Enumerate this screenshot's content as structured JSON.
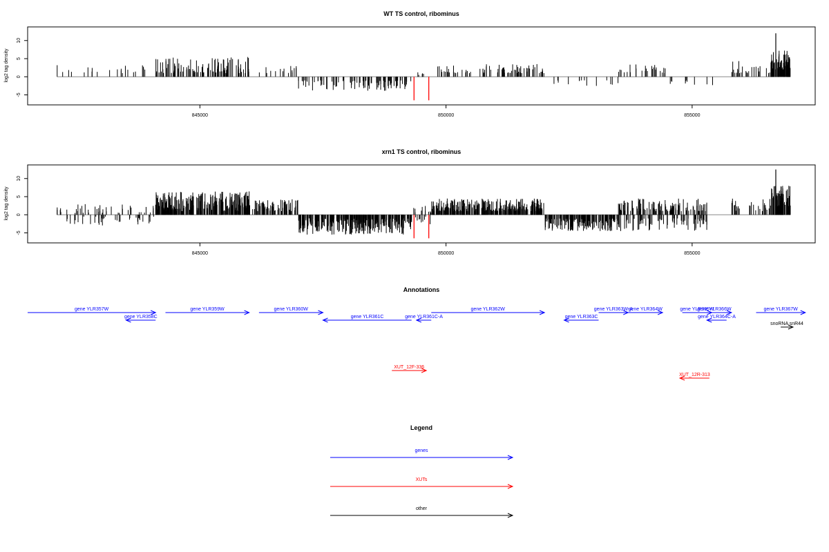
{
  "colors": {
    "genes": "#0000ff",
    "xuts": "#ff0000",
    "other": "#000000",
    "bars": "#000000",
    "highlight": "#ff0000",
    "frame": "#000000"
  },
  "chart_data": [
    {
      "type": "bar",
      "title": "WT TS control, ribominus",
      "ylabel": "log2 tag density",
      "xlim": [
        841500,
        857500
      ],
      "ylim": [
        -7,
        13
      ],
      "x_ticks": [
        845000,
        850000,
        855000
      ],
      "x_tick_labels": [
        "845000",
        "850000",
        "855000"
      ],
      "y_ticks": [
        -5,
        0,
        5,
        10
      ],
      "y_tick_labels": [
        "-5",
        "0",
        "5",
        "10"
      ],
      "baseline_range": [
        842100,
        857000
      ],
      "segments": [
        {
          "start": 842100,
          "end": 844000,
          "sign": 1,
          "min": 1,
          "max": 3.5,
          "density": 0.012
        },
        {
          "start": 844100,
          "end": 846000,
          "sign": 1,
          "min": 1,
          "max": 5.5,
          "density": 0.06
        },
        {
          "start": 846000,
          "end": 847000,
          "sign": 1,
          "min": 1,
          "max": 3,
          "density": 0.015
        },
        {
          "start": 847000,
          "end": 849300,
          "sign": -1,
          "min": 1,
          "max": 4,
          "density": 0.045
        },
        {
          "start": 849400,
          "end": 849700,
          "sign": 1,
          "min": 0.5,
          "max": 2,
          "density": 0.02
        },
        {
          "start": 849800,
          "end": 852000,
          "sign": 1,
          "min": 1,
          "max": 3.5,
          "density": 0.035
        },
        {
          "start": 852100,
          "end": 853500,
          "sign": -1,
          "min": 1,
          "max": 3,
          "density": 0.01
        },
        {
          "start": 853500,
          "end": 854500,
          "sign": 1,
          "min": 1,
          "max": 3.5,
          "density": 0.025
        },
        {
          "start": 854500,
          "end": 855500,
          "sign": -1,
          "min": 1,
          "max": 2.5,
          "density": 0.01
        },
        {
          "start": 855800,
          "end": 856600,
          "sign": 1,
          "min": 1,
          "max": 4.5,
          "density": 0.03
        },
        {
          "start": 856600,
          "end": 857000,
          "sign": 1,
          "min": 2,
          "max": 7.5,
          "density": 0.18
        }
      ],
      "peaks": [
        {
          "x": 856700,
          "y": 12
        }
      ],
      "highlights": [
        {
          "x": 849350,
          "y": -6.5
        },
        {
          "x": 849650,
          "y": -6.5
        }
      ]
    },
    {
      "type": "bar",
      "title": "xrn1 TS control, ribominus",
      "ylabel": "log2 tag density",
      "xlim": [
        841500,
        857500
      ],
      "ylim": [
        -7,
        13
      ],
      "x_ticks": [
        845000,
        850000,
        855000
      ],
      "x_tick_labels": [
        "845000",
        "850000",
        "855000"
      ],
      "y_ticks": [
        -5,
        0,
        5,
        10
      ],
      "y_tick_labels": [
        "-5",
        "0",
        "5",
        "10"
      ],
      "baseline_range": [
        842100,
        857000
      ],
      "segments": [
        {
          "start": 842100,
          "end": 844100,
          "sign": 0,
          "min": 0.5,
          "max": 3,
          "density": 0.04
        },
        {
          "start": 844100,
          "end": 846000,
          "sign": 1,
          "min": 1,
          "max": 6.5,
          "density": 0.15
        },
        {
          "start": 846000,
          "end": 847000,
          "sign": 1,
          "min": 1,
          "max": 4.5,
          "density": 0.08
        },
        {
          "start": 847000,
          "end": 849300,
          "sign": -1,
          "min": 1,
          "max": 5.5,
          "density": 0.14
        },
        {
          "start": 849300,
          "end": 849700,
          "sign": 0,
          "min": 0.5,
          "max": 3,
          "density": 0.05
        },
        {
          "start": 849700,
          "end": 852000,
          "sign": 1,
          "min": 1,
          "max": 4.5,
          "density": 0.14
        },
        {
          "start": 852000,
          "end": 853500,
          "sign": -1,
          "min": 1,
          "max": 4.5,
          "density": 0.12
        },
        {
          "start": 853500,
          "end": 855300,
          "sign": 0,
          "min": 1,
          "max": 4.5,
          "density": 0.11
        },
        {
          "start": 855800,
          "end": 856600,
          "sign": 1,
          "min": 1,
          "max": 4.5,
          "density": 0.04
        },
        {
          "start": 856600,
          "end": 857000,
          "sign": 1,
          "min": 2,
          "max": 8,
          "density": 0.2
        }
      ],
      "peaks": [
        {
          "x": 856700,
          "y": 12.5
        }
      ],
      "highlights": [
        {
          "x": 849350,
          "y": -6.5
        },
        {
          "x": 849650,
          "y": -6.5
        }
      ]
    }
  ],
  "annotations": {
    "title": "Annotations",
    "xlim": [
      841500,
      857500
    ],
    "features": [
      {
        "label": "gene YLR357W",
        "start": 841500,
        "end": 844100,
        "strand": "+",
        "kind": "gene",
        "row": 0
      },
      {
        "label": "gene YLR358C",
        "start": 843500,
        "end": 844100,
        "strand": "-",
        "kind": "gene",
        "row": 1
      },
      {
        "label": "gene YLR359W",
        "start": 844300,
        "end": 846000,
        "strand": "+",
        "kind": "gene",
        "row": 0
      },
      {
        "label": "gene YLR360W",
        "start": 846200,
        "end": 847500,
        "strand": "+",
        "kind": "gene",
        "row": 0
      },
      {
        "label": "gene YLR361C",
        "start": 847500,
        "end": 849300,
        "strand": "-",
        "kind": "gene",
        "row": 1
      },
      {
        "label": "gene YLR361C-A",
        "start": 849400,
        "end": 849700,
        "strand": "-",
        "kind": "gene",
        "row": 1
      },
      {
        "label": "gene YLR362W",
        "start": 849700,
        "end": 852000,
        "strand": "+",
        "kind": "gene",
        "row": 0
      },
      {
        "label": "gene YLR363C",
        "start": 852400,
        "end": 853100,
        "strand": "-",
        "kind": "gene",
        "row": 1
      },
      {
        "label": "gene YLR363W-A",
        "start": 853100,
        "end": 853700,
        "strand": "+",
        "kind": "gene",
        "row": 0
      },
      {
        "label": "gene YLR364W",
        "start": 853700,
        "end": 854400,
        "strand": "+",
        "kind": "gene",
        "row": 0
      },
      {
        "label": "gene YLR365W",
        "start": 854800,
        "end": 855400,
        "strand": "+",
        "kind": "gene",
        "row": 0
      },
      {
        "label": "gene YLR366W",
        "start": 855100,
        "end": 855800,
        "strand": "+",
        "kind": "gene",
        "row": 0
      },
      {
        "label": "gene YLR364C-A",
        "start": 855300,
        "end": 855700,
        "strand": "-",
        "kind": "gene",
        "row": 1
      },
      {
        "label": "gene YLR367W",
        "start": 856300,
        "end": 857300,
        "strand": "+",
        "kind": "gene",
        "row": 0
      },
      {
        "label": "snoRNA snR44",
        "start": 856800,
        "end": 857050,
        "strand": "+",
        "kind": "other",
        "row": 2
      },
      {
        "label": "XUT_12F-336",
        "start": 848900,
        "end": 849600,
        "strand": "+",
        "kind": "xut",
        "row": 4
      },
      {
        "label": "XUT_12R-313",
        "start": 854750,
        "end": 855350,
        "strand": "-",
        "kind": "xut",
        "row": 5
      }
    ]
  },
  "legend": {
    "title": "Legend",
    "items": [
      {
        "label": "genes",
        "kind": "gene"
      },
      {
        "label": "XUTs",
        "kind": "xut"
      },
      {
        "label": "other",
        "kind": "other"
      }
    ]
  }
}
